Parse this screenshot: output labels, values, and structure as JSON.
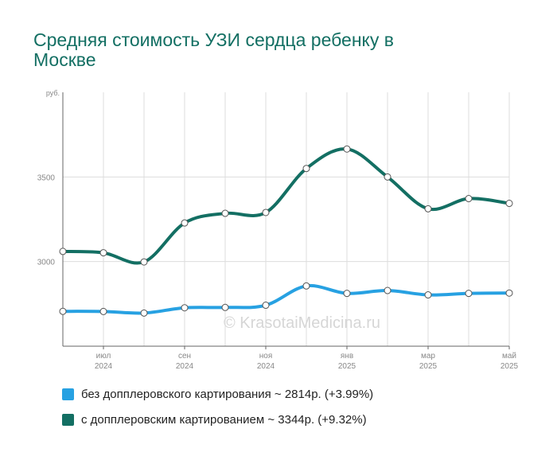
{
  "title": "Средняя стоимость УЗИ сердца ребенку в Москве",
  "chart_data": {
    "type": "line",
    "y_unit": "руб.",
    "y_ticks": [
      3000,
      3500
    ],
    "ylim": [
      2500,
      4000
    ],
    "x_ticks": [
      {
        "month": "июл",
        "year": "2024"
      },
      {
        "month": "сен",
        "year": "2024"
      },
      {
        "month": "ноя",
        "year": "2024"
      },
      {
        "month": "янв",
        "year": "2025"
      },
      {
        "month": "мар",
        "year": "2025"
      },
      {
        "month": "май",
        "year": "2025"
      }
    ],
    "grid": true,
    "legend_position": "bottom",
    "watermark": "© KrasotaiMedicina.ru",
    "series": [
      {
        "name": "без допплеровского картирования",
        "summary": "~ 2814р. (+3.99%)",
        "color": "#27a1e2",
        "values": [
          2706,
          2705,
          2696,
          2727,
          2729,
          2742,
          2856,
          2812,
          2829,
          2803,
          2812,
          2814
        ]
      },
      {
        "name": "с допплеровским картированием",
        "summary": "~ 3344р. (+9.32%)",
        "color": "#136f63",
        "values": [
          3060,
          3052,
          2998,
          3228,
          3285,
          3290,
          3550,
          3665,
          3500,
          3312,
          3372,
          3344
        ]
      }
    ]
  }
}
